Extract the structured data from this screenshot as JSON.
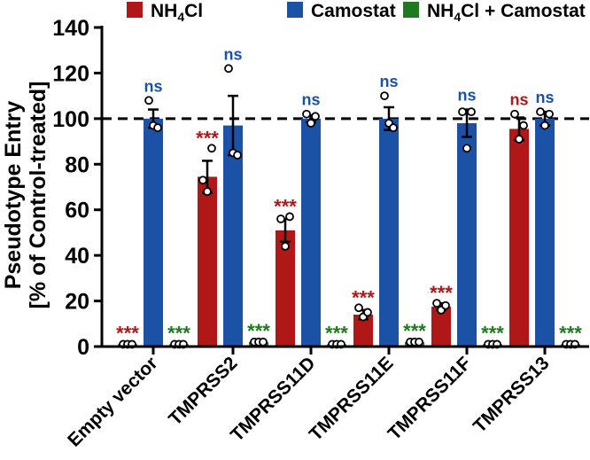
{
  "chart_data": {
    "type": "bar",
    "title": "",
    "ylabel_line1": "Pseudotype Entry",
    "ylabel_line2": "[% of Control-treated]",
    "xlabel": "",
    "ylim": [
      0,
      140
    ],
    "yticks": [
      "0",
      "20",
      "40",
      "60",
      "80",
      "100",
      "120",
      "140"
    ],
    "reference_line": 100,
    "categories": [
      "Empty vector",
      "TMPRSS2",
      "TMPRSS11D",
      "TMPRSS11E",
      "TMPRSS11F",
      "TMPRSS13"
    ],
    "series": [
      {
        "name": "NH4Cl",
        "legend_main": "NH",
        "legend_sub": "4",
        "legend_rest": "Cl",
        "color": "#b01717",
        "values": [
          1,
          74.5,
          51,
          14,
          17.5,
          95.5
        ],
        "errors": [
          0.3,
          7,
          5,
          2,
          1.5,
          5
        ],
        "points": [
          [
            1,
            1,
            1
          ],
          [
            73,
            68,
            87
          ],
          [
            56,
            44,
            57
          ],
          [
            17,
            13,
            15
          ],
          [
            19,
            16,
            18
          ],
          [
            102,
            91,
            97
          ]
        ],
        "significance": [
          "***",
          "***",
          "***",
          "***",
          "***",
          "ns"
        ]
      },
      {
        "name": "Camostat",
        "legend_main": "Camostat",
        "legend_sub": "",
        "legend_rest": "",
        "color": "#1c52a6",
        "values": [
          100,
          97,
          100,
          100,
          98,
          100
        ],
        "errors": [
          4,
          13,
          1.5,
          5,
          6,
          3
        ],
        "points": [
          [
            108,
            97,
            96
          ],
          [
            122,
            85,
            84
          ],
          [
            102,
            98,
            101
          ],
          [
            110,
            98,
            96
          ],
          [
            103,
            87,
            103
          ],
          [
            103,
            97,
            102
          ]
        ],
        "significance": [
          "ns",
          "ns",
          "ns",
          "ns",
          "ns",
          "ns"
        ]
      },
      {
        "name": "NH4Cl + Camostat",
        "legend_main": "NH",
        "legend_sub": "4",
        "legend_rest": "Cl + Camostat",
        "color": "#1f7a1f",
        "values": [
          1,
          2,
          1,
          2,
          1,
          1
        ],
        "errors": [
          0.3,
          0.4,
          0.3,
          0.4,
          0.3,
          0.3
        ],
        "points": [
          [
            1,
            1,
            1
          ],
          [
            2,
            2,
            2
          ],
          [
            1,
            1,
            1
          ],
          [
            2,
            2,
            2
          ],
          [
            1,
            1,
            1
          ],
          [
            1,
            1,
            1
          ]
        ],
        "significance": [
          "***",
          "***",
          "***",
          "***",
          "***",
          "***"
        ]
      }
    ]
  }
}
